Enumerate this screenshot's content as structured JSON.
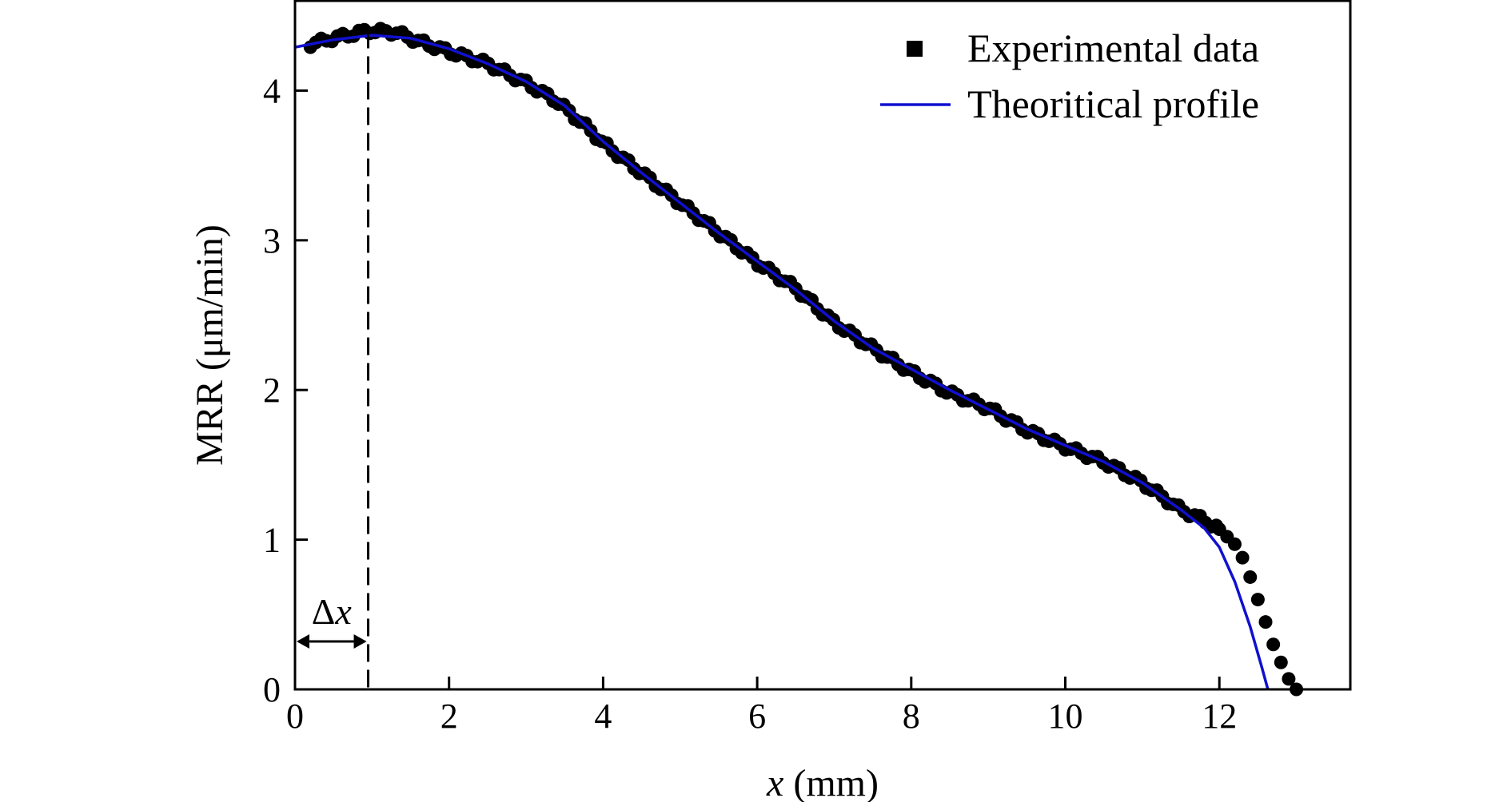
{
  "chart_data": {
    "type": "scatter",
    "xlabel_var": "x",
    "xlabel_unit": " (mm)",
    "ylabel": "MRR (μm/min)",
    "xlim": [
      0,
      13.7
    ],
    "ylim": [
      0,
      4.6
    ],
    "x_ticks": [
      0,
      2,
      4,
      6,
      8,
      10,
      12
    ],
    "y_ticks": [
      0,
      1,
      2,
      3,
      4
    ],
    "grid": false,
    "legend_position": "top-right",
    "legend": [
      {
        "label": "Experimental data",
        "marker": "square",
        "color": "#000000"
      },
      {
        "label": "Theoritical profile",
        "marker": "line",
        "color": "#1010d0"
      }
    ],
    "annotation": {
      "label_symbol": "Δ",
      "label_var": "x",
      "x_start": 0,
      "x_end": 0.95,
      "marker_y": 0.32
    },
    "series": [
      {
        "name": "Experimental data",
        "kind": "points",
        "color": "#000000",
        "anchors": [
          [
            0.2,
            4.31
          ],
          [
            0.5,
            4.35
          ],
          [
            0.95,
            4.4
          ],
          [
            1.3,
            4.39
          ],
          [
            1.6,
            4.33
          ],
          [
            2.0,
            4.26
          ],
          [
            2.5,
            4.18
          ],
          [
            3.0,
            4.05
          ],
          [
            3.4,
            3.93
          ],
          [
            3.8,
            3.75
          ],
          [
            4.0,
            3.65
          ],
          [
            4.5,
            3.45
          ],
          [
            5.0,
            3.25
          ],
          [
            5.5,
            3.05
          ],
          [
            6.0,
            2.85
          ],
          [
            6.5,
            2.68
          ],
          [
            7.0,
            2.45
          ],
          [
            7.5,
            2.28
          ],
          [
            8.0,
            2.12
          ],
          [
            8.5,
            1.98
          ],
          [
            9.0,
            1.88
          ],
          [
            9.5,
            1.73
          ],
          [
            10.0,
            1.62
          ],
          [
            10.5,
            1.52
          ],
          [
            11.0,
            1.38
          ],
          [
            11.5,
            1.2
          ],
          [
            11.8,
            1.13
          ],
          [
            12.0,
            1.07
          ],
          [
            12.2,
            0.97
          ],
          [
            12.3,
            0.88
          ],
          [
            12.4,
            0.75
          ],
          [
            12.5,
            0.6
          ],
          [
            12.6,
            0.45
          ],
          [
            12.7,
            0.3
          ],
          [
            12.8,
            0.18
          ],
          [
            12.9,
            0.07
          ],
          [
            13.0,
            0.0
          ]
        ]
      },
      {
        "name": "Theoritical profile",
        "kind": "line",
        "color": "#1010d0",
        "points": [
          [
            0.0,
            4.29
          ],
          [
            0.5,
            4.34
          ],
          [
            1.0,
            4.37
          ],
          [
            1.5,
            4.35
          ],
          [
            2.0,
            4.28
          ],
          [
            2.5,
            4.18
          ],
          [
            3.0,
            4.06
          ],
          [
            3.5,
            3.9
          ],
          [
            4.0,
            3.66
          ],
          [
            4.5,
            3.45
          ],
          [
            5.0,
            3.25
          ],
          [
            5.5,
            3.05
          ],
          [
            6.0,
            2.86
          ],
          [
            6.5,
            2.67
          ],
          [
            7.0,
            2.46
          ],
          [
            7.5,
            2.28
          ],
          [
            8.0,
            2.14
          ],
          [
            8.5,
            2.0
          ],
          [
            9.0,
            1.87
          ],
          [
            9.5,
            1.74
          ],
          [
            10.0,
            1.63
          ],
          [
            10.5,
            1.52
          ],
          [
            11.0,
            1.38
          ],
          [
            11.5,
            1.2
          ],
          [
            11.8,
            1.08
          ],
          [
            12.0,
            0.95
          ],
          [
            12.2,
            0.72
          ],
          [
            12.4,
            0.42
          ],
          [
            12.55,
            0.15
          ],
          [
            12.63,
            0.0
          ]
        ]
      }
    ]
  }
}
